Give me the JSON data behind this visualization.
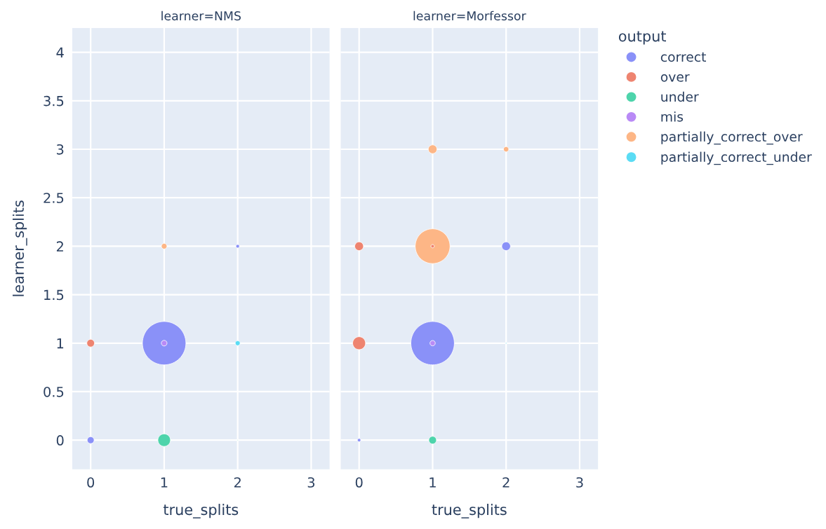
{
  "chart_data": [
    {
      "type": "bubble",
      "title": "learner=NMS",
      "xlabel": "true_splits",
      "ylabel": "learner_splits",
      "xlim": [
        -0.25,
        3.25
      ],
      "xticks": [
        0,
        1,
        2,
        3
      ],
      "ylim": [
        -0.3,
        4.25
      ],
      "yticks": [
        0,
        0.5,
        1,
        1.5,
        2,
        2.5,
        3,
        3.5,
        4
      ],
      "grid": true,
      "legend": "right",
      "legend_title": "output",
      "marker": "circle",
      "series": [
        {
          "name": "correct",
          "color": "#8a91f8",
          "x": [
            0,
            1,
            2
          ],
          "values": [
            0,
            1,
            2
          ],
          "sizes": [
            0.026,
            1,
            0.0065
          ]
        },
        {
          "name": "over",
          "color": "#ee8470",
          "x": [
            0
          ],
          "values": [
            1
          ],
          "sizes": [
            0.031
          ]
        },
        {
          "name": "under",
          "color": "#4ed4ab",
          "x": [
            1,
            2
          ],
          "values": [
            0,
            0
          ],
          "sizes": [
            0.084,
            0.0003
          ]
        },
        {
          "name": "mis",
          "color": "#b98af6",
          "x": [
            1
          ],
          "values": [
            1
          ],
          "sizes": [
            0.017
          ]
        },
        {
          "name": "partially_correct_over",
          "color": "#fdb686",
          "x": [
            1
          ],
          "values": [
            2
          ],
          "sizes": [
            0.017
          ]
        },
        {
          "name": "partially_correct_under",
          "color": "#5bdcf4",
          "x": [
            2
          ],
          "values": [
            1
          ],
          "sizes": [
            0.013
          ]
        }
      ]
    },
    {
      "type": "bubble",
      "title": "learner=Morfessor",
      "xlabel": "true_splits",
      "xlim": [
        -0.25,
        3.25
      ],
      "xticks": [
        0,
        1,
        2,
        3
      ],
      "ylim": [
        -0.3,
        4.25
      ],
      "yticks": [
        0,
        0.5,
        1,
        1.5,
        2,
        2.5,
        3,
        3.5,
        4
      ],
      "tick_labels": "x",
      "grid": true,
      "marker": "circle",
      "series": [
        {
          "color": "#8a91f8",
          "x": [
            0,
            1,
            2
          ],
          "values": [
            0,
            1,
            2
          ],
          "sizes": [
            0.006,
            1,
            0.04
          ]
        },
        {
          "color": "#ee8470",
          "x": [
            0,
            0,
            1
          ],
          "values": [
            1,
            2,
            2
          ],
          "sizes": [
            0.088,
            0.04,
            0.006
          ]
        },
        {
          "color": "#4ed4ab",
          "x": [
            1
          ],
          "values": [
            0
          ],
          "sizes": [
            0.031
          ]
        },
        {
          "color": "#b98af6",
          "x": [
            1
          ],
          "values": [
            1
          ],
          "sizes": [
            0.015
          ]
        },
        {
          "color": "#fdb686",
          "x": [
            1,
            1,
            2
          ],
          "values": [
            2,
            3,
            3
          ],
          "sizes": [
            0.64,
            0.04,
            0.015
          ]
        },
        {
          "color": "#5bdcf4",
          "x": [
            2
          ],
          "values": [
            1
          ],
          "sizes": [
            0.0007
          ]
        }
      ]
    }
  ]
}
